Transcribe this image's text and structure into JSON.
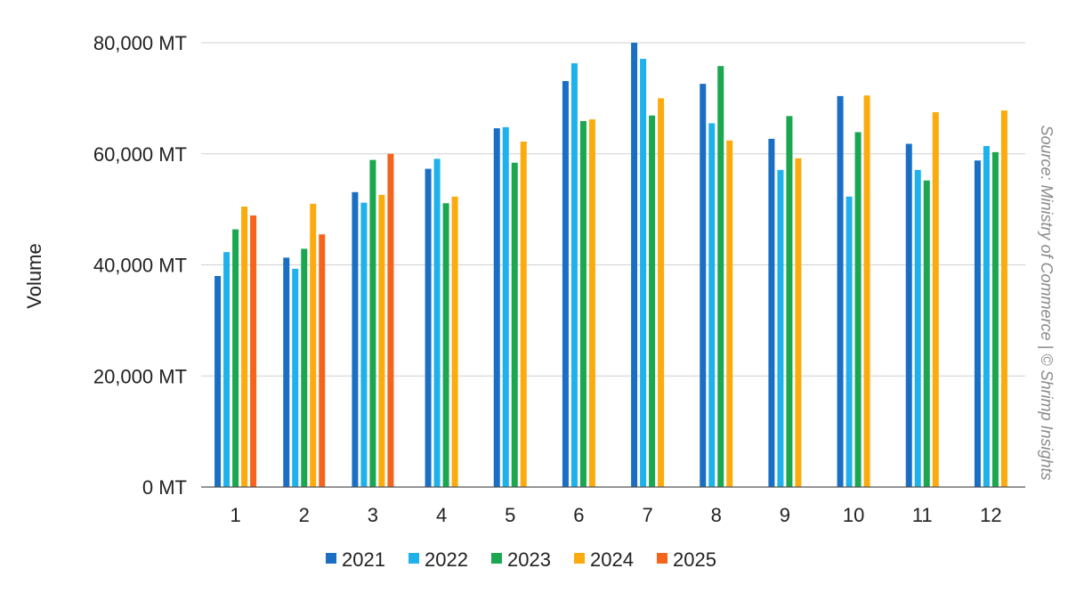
{
  "chart_data": {
    "type": "bar",
    "ylabel": "Volume",
    "ylim": [
      0,
      80000
    ],
    "yticks": [
      {
        "value": 0,
        "label": "0 MT"
      },
      {
        "value": 20000,
        "label": "20,000 MT"
      },
      {
        "value": 40000,
        "label": "40,000 MT"
      },
      {
        "value": 60000,
        "label": "60,000 MT"
      },
      {
        "value": 80000,
        "label": "80,000 MT"
      }
    ],
    "categories": [
      "1",
      "2",
      "3",
      "4",
      "5",
      "6",
      "7",
      "8",
      "9",
      "10",
      "11",
      "12"
    ],
    "grid": true,
    "legend_position": "bottom",
    "series": [
      {
        "name": "2021",
        "color": "#1a6fc4",
        "values": [
          38000,
          41300,
          53100,
          57300,
          64600,
          73100,
          80000,
          72600,
          62700,
          70400,
          61800,
          58800
        ]
      },
      {
        "name": "2022",
        "color": "#1eb1ec",
        "values": [
          42300,
          39300,
          51200,
          59100,
          64800,
          76300,
          77100,
          65500,
          57100,
          52300,
          57100,
          61400
        ]
      },
      {
        "name": "2023",
        "color": "#1aa750",
        "values": [
          46400,
          42900,
          58900,
          51100,
          58400,
          65900,
          66900,
          75800,
          66800,
          63900,
          55200,
          60300
        ]
      },
      {
        "name": "2024",
        "color": "#fbab0e",
        "values": [
          50500,
          51000,
          52600,
          52300,
          62200,
          66200,
          70000,
          62400,
          59200,
          70500,
          67500,
          67800
        ]
      },
      {
        "name": "2025",
        "color": "#f4641c",
        "values": [
          48900,
          45500,
          60000,
          null,
          null,
          null,
          null,
          null,
          null,
          null,
          null,
          null
        ]
      }
    ],
    "source_note": "Source: Ministry of Commerce | © Shrimp Insights"
  }
}
